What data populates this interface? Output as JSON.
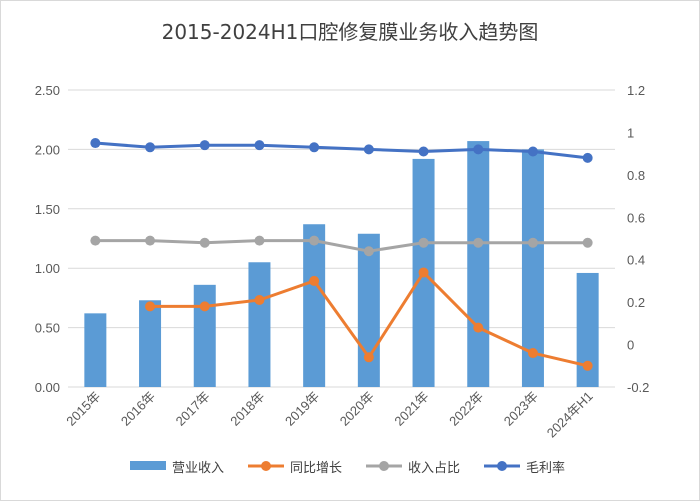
{
  "chart_data": {
    "type": "bar",
    "title": "2015-2024H1口腔修复膜业务收入趋势图",
    "categories": [
      "2015年",
      "2016年",
      "2017年",
      "2018年",
      "2019年",
      "2020年",
      "2021年",
      "2022年",
      "2023年",
      "2024年H1"
    ],
    "left_axis": {
      "min": 0,
      "max": 2.5,
      "step": 0.5,
      "tick_labels": [
        "0.00",
        "0.50",
        "1.00",
        "1.50",
        "2.00",
        "2.50"
      ]
    },
    "right_axis": {
      "min": -0.2,
      "max": 1.2,
      "step": 0.2,
      "tick_labels": [
        "-0.2",
        "0",
        "0.2",
        "0.4",
        "0.6",
        "0.8",
        "1",
        "1.2"
      ]
    },
    "grid": true,
    "legend_position": "bottom",
    "series": [
      {
        "name": "营业收入",
        "type": "bar",
        "axis": "left",
        "color": "#5B9BD5",
        "values": [
          0.62,
          0.73,
          0.86,
          1.05,
          1.37,
          1.29,
          1.92,
          2.07,
          2.0,
          0.96
        ]
      },
      {
        "name": "同比增长",
        "type": "line",
        "axis": "right",
        "color": "#ED7D31",
        "values": [
          null,
          0.18,
          0.18,
          0.21,
          0.3,
          -0.06,
          0.34,
          0.08,
          -0.04,
          -0.1
        ]
      },
      {
        "name": "收入占比",
        "type": "line",
        "axis": "right",
        "color": "#A5A5A5",
        "values": [
          0.49,
          0.49,
          0.48,
          0.49,
          0.49,
          0.44,
          0.48,
          0.48,
          0.48,
          0.48
        ]
      },
      {
        "name": "毛利率",
        "type": "line",
        "axis": "right",
        "color": "#4472C4",
        "values": [
          0.95,
          0.93,
          0.94,
          0.94,
          0.93,
          0.92,
          0.91,
          0.92,
          0.91,
          0.88
        ]
      }
    ]
  }
}
